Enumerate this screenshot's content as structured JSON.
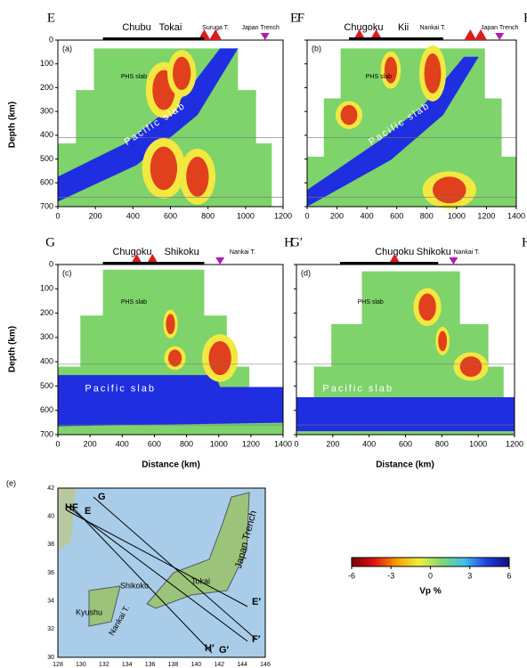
{
  "panels": [
    {
      "letter": "(a)",
      "left_label": "E",
      "right_label": "E′",
      "places": [
        "Chubu",
        "Tokai",
        "Suruga T.",
        "Japan Trench"
      ],
      "slabs": [
        "PHS slab",
        "Pacific slab"
      ],
      "xticks": [
        0,
        200,
        400,
        600,
        800,
        1000,
        1200
      ],
      "yticks": [
        0,
        100,
        200,
        300,
        400,
        500,
        600,
        700
      ]
    },
    {
      "letter": "(b)",
      "left_label": "F",
      "right_label": "F′",
      "places": [
        "Chugoku",
        "Kii",
        "Nankai T.",
        "Japan Trench"
      ],
      "slabs": [
        "PHS slab",
        "Pacific slab"
      ],
      "xticks": [
        0,
        200,
        400,
        600,
        800,
        1000,
        1200,
        1400
      ],
      "yticks": [
        0,
        100,
        200,
        300,
        400,
        500,
        600,
        700
      ]
    },
    {
      "letter": "(c)",
      "left_label": "G",
      "right_label": "G′",
      "places": [
        "Chugoku",
        "Shikoku",
        "Nankai T."
      ],
      "slabs": [
        "PHS slab",
        "Pacific slab"
      ],
      "xticks": [
        0,
        200,
        400,
        600,
        800,
        1000,
        1200,
        1400
      ],
      "yticks": [
        0,
        100,
        200,
        300,
        400,
        500,
        600,
        700
      ]
    },
    {
      "letter": "(d)",
      "left_label": "H",
      "right_label": "H′",
      "places": [
        "Chugoku",
        "Shikoku",
        "Nankai T."
      ],
      "slabs": [
        "PHS slab",
        "Pacific slab"
      ],
      "xticks": [
        0,
        200,
        400,
        600,
        800,
        1000,
        1200
      ],
      "yticks": [
        0,
        100,
        200,
        300,
        400,
        500,
        600,
        700
      ]
    }
  ],
  "axis_labels": {
    "depth": "Depth (km)",
    "distance": "Distance (km)"
  },
  "map": {
    "letter": "(e)",
    "profile_labels": [
      "G",
      "HF",
      "E",
      "E′",
      "F′",
      "H′",
      "G′"
    ],
    "region_labels": [
      "Kyushu",
      "Shikoku",
      "Tokai",
      "Japan Trench",
      "Nankai T."
    ],
    "lat_ticks": [
      30,
      32,
      34,
      36,
      38,
      40,
      42
    ],
    "lon_ticks": [
      128,
      130,
      132,
      134,
      136,
      138,
      140,
      142,
      144,
      146
    ]
  },
  "colorbar": {
    "ticks": [
      -6,
      -3,
      0,
      3,
      6
    ],
    "label": "Vp %"
  }
}
